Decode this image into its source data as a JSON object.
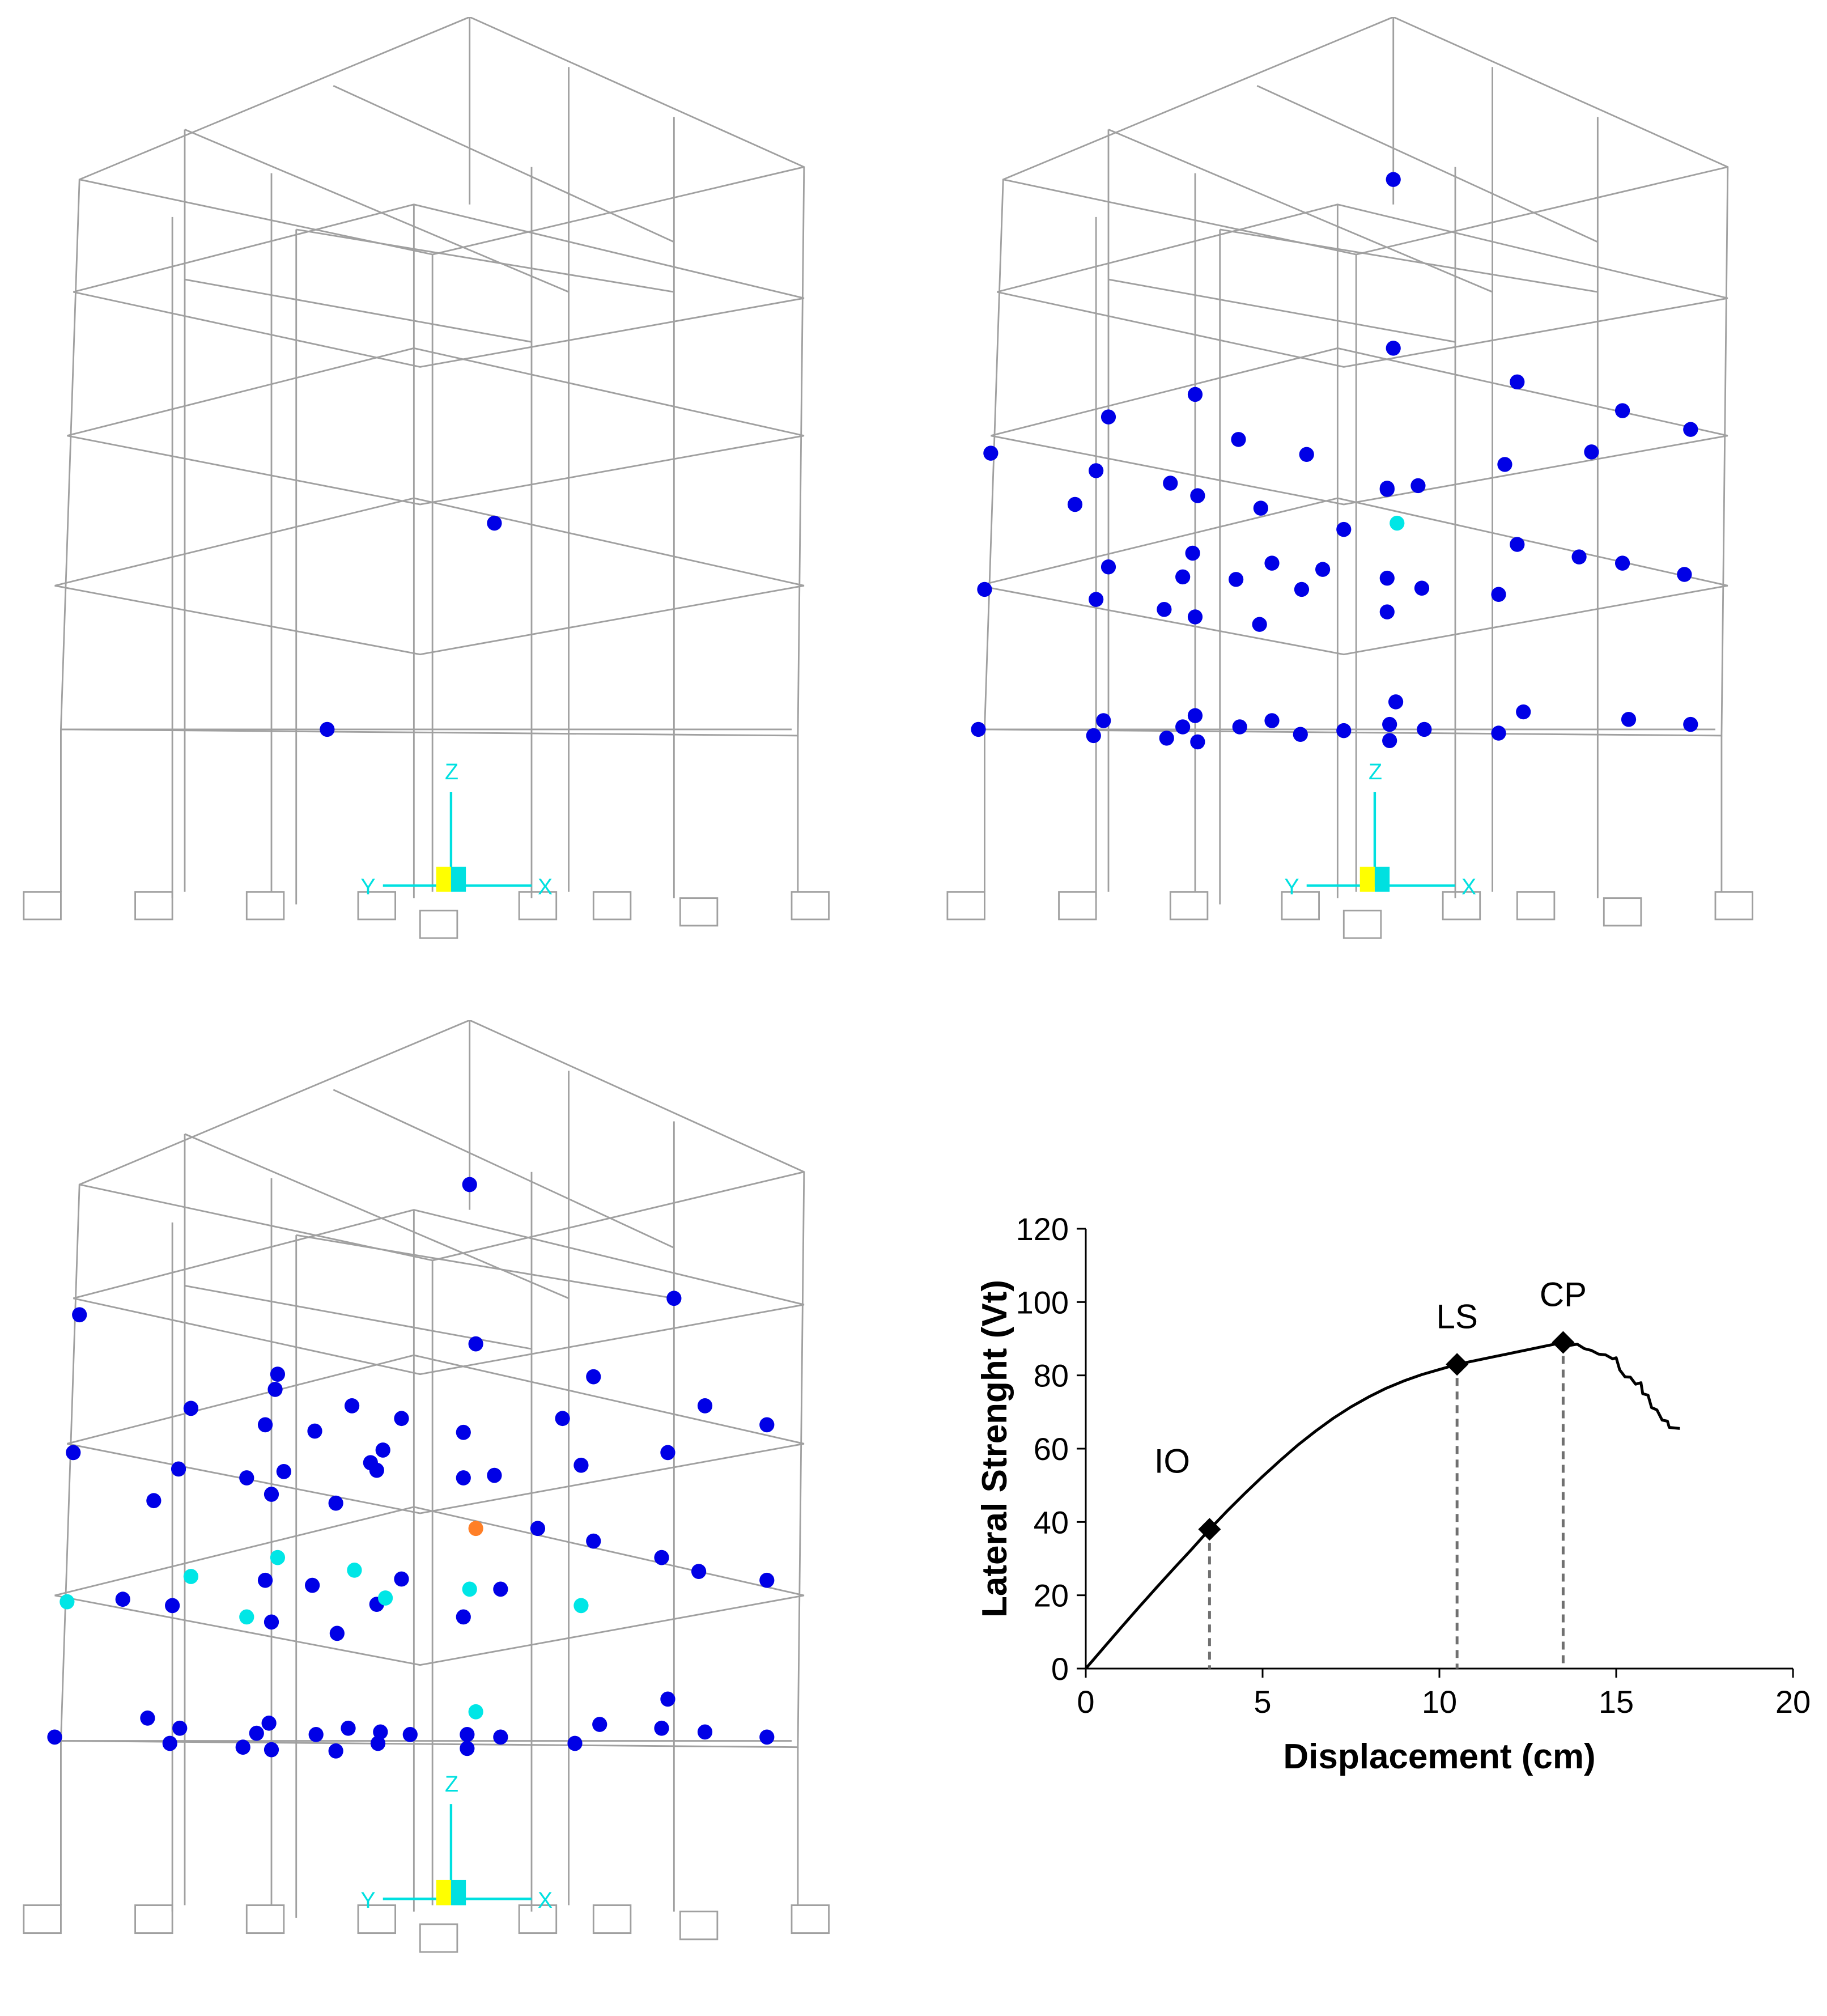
{
  "axis_triad": {
    "z_label": "Z",
    "x_label": "X",
    "y_label": "Y"
  },
  "chart_data": {
    "type": "line",
    "title": "",
    "xlabel": "Displacement (cm)",
    "ylabel": "Lateral Strenght (Vt)",
    "xlim": [
      0,
      20
    ],
    "ylim": [
      0,
      120
    ],
    "xticks": [
      0,
      5,
      10,
      15,
      20
    ],
    "yticks": [
      0,
      20,
      40,
      60,
      80,
      100,
      120
    ],
    "grid": false,
    "legend": "none",
    "line_color": "#000000",
    "points": [
      [
        0,
        0
      ],
      [
        0.5,
        5.6
      ],
      [
        1,
        11.2
      ],
      [
        1.5,
        16.7
      ],
      [
        2,
        22.1
      ],
      [
        2.5,
        27.4
      ],
      [
        3,
        32.6
      ],
      [
        3.5,
        38
      ],
      [
        4,
        43
      ],
      [
        4.5,
        47.8
      ],
      [
        5,
        52.4
      ],
      [
        5.5,
        56.8
      ],
      [
        6,
        61
      ],
      [
        6.5,
        64.8
      ],
      [
        7,
        68.3
      ],
      [
        7.5,
        71.4
      ],
      [
        8,
        74.1
      ],
      [
        8.5,
        76.5
      ],
      [
        9,
        78.5
      ],
      [
        9.5,
        80.2
      ],
      [
        10,
        81.6
      ],
      [
        10.5,
        83
      ],
      [
        11,
        84
      ],
      [
        11.5,
        85
      ],
      [
        12,
        86
      ],
      [
        12.5,
        87
      ],
      [
        13,
        88
      ],
      [
        13.5,
        89
      ],
      [
        13.7,
        88.2
      ],
      [
        13.9,
        88.5
      ],
      [
        14.1,
        87.3
      ],
      [
        14.3,
        86.8
      ],
      [
        14.5,
        85.8
      ],
      [
        14.7,
        85.6
      ],
      [
        14.9,
        84.5
      ],
      [
        15.0,
        84.8
      ],
      [
        15.1,
        81.5
      ],
      [
        15.25,
        79.6
      ],
      [
        15.4,
        79.5
      ],
      [
        15.55,
        77.6
      ],
      [
        15.7,
        78.0
      ],
      [
        15.75,
        75.0
      ],
      [
        15.9,
        74.6
      ],
      [
        16.0,
        71.2
      ],
      [
        16.15,
        70.6
      ],
      [
        16.3,
        67.8
      ],
      [
        16.45,
        67.5
      ],
      [
        16.5,
        65.8
      ],
      [
        16.8,
        65.5
      ]
    ],
    "performance_points": [
      {
        "label": "IO",
        "x": 3.5,
        "y": 38
      },
      {
        "label": "LS",
        "x": 10.5,
        "y": 83
      },
      {
        "label": "CP",
        "x": 13.5,
        "y": 89
      }
    ]
  }
}
